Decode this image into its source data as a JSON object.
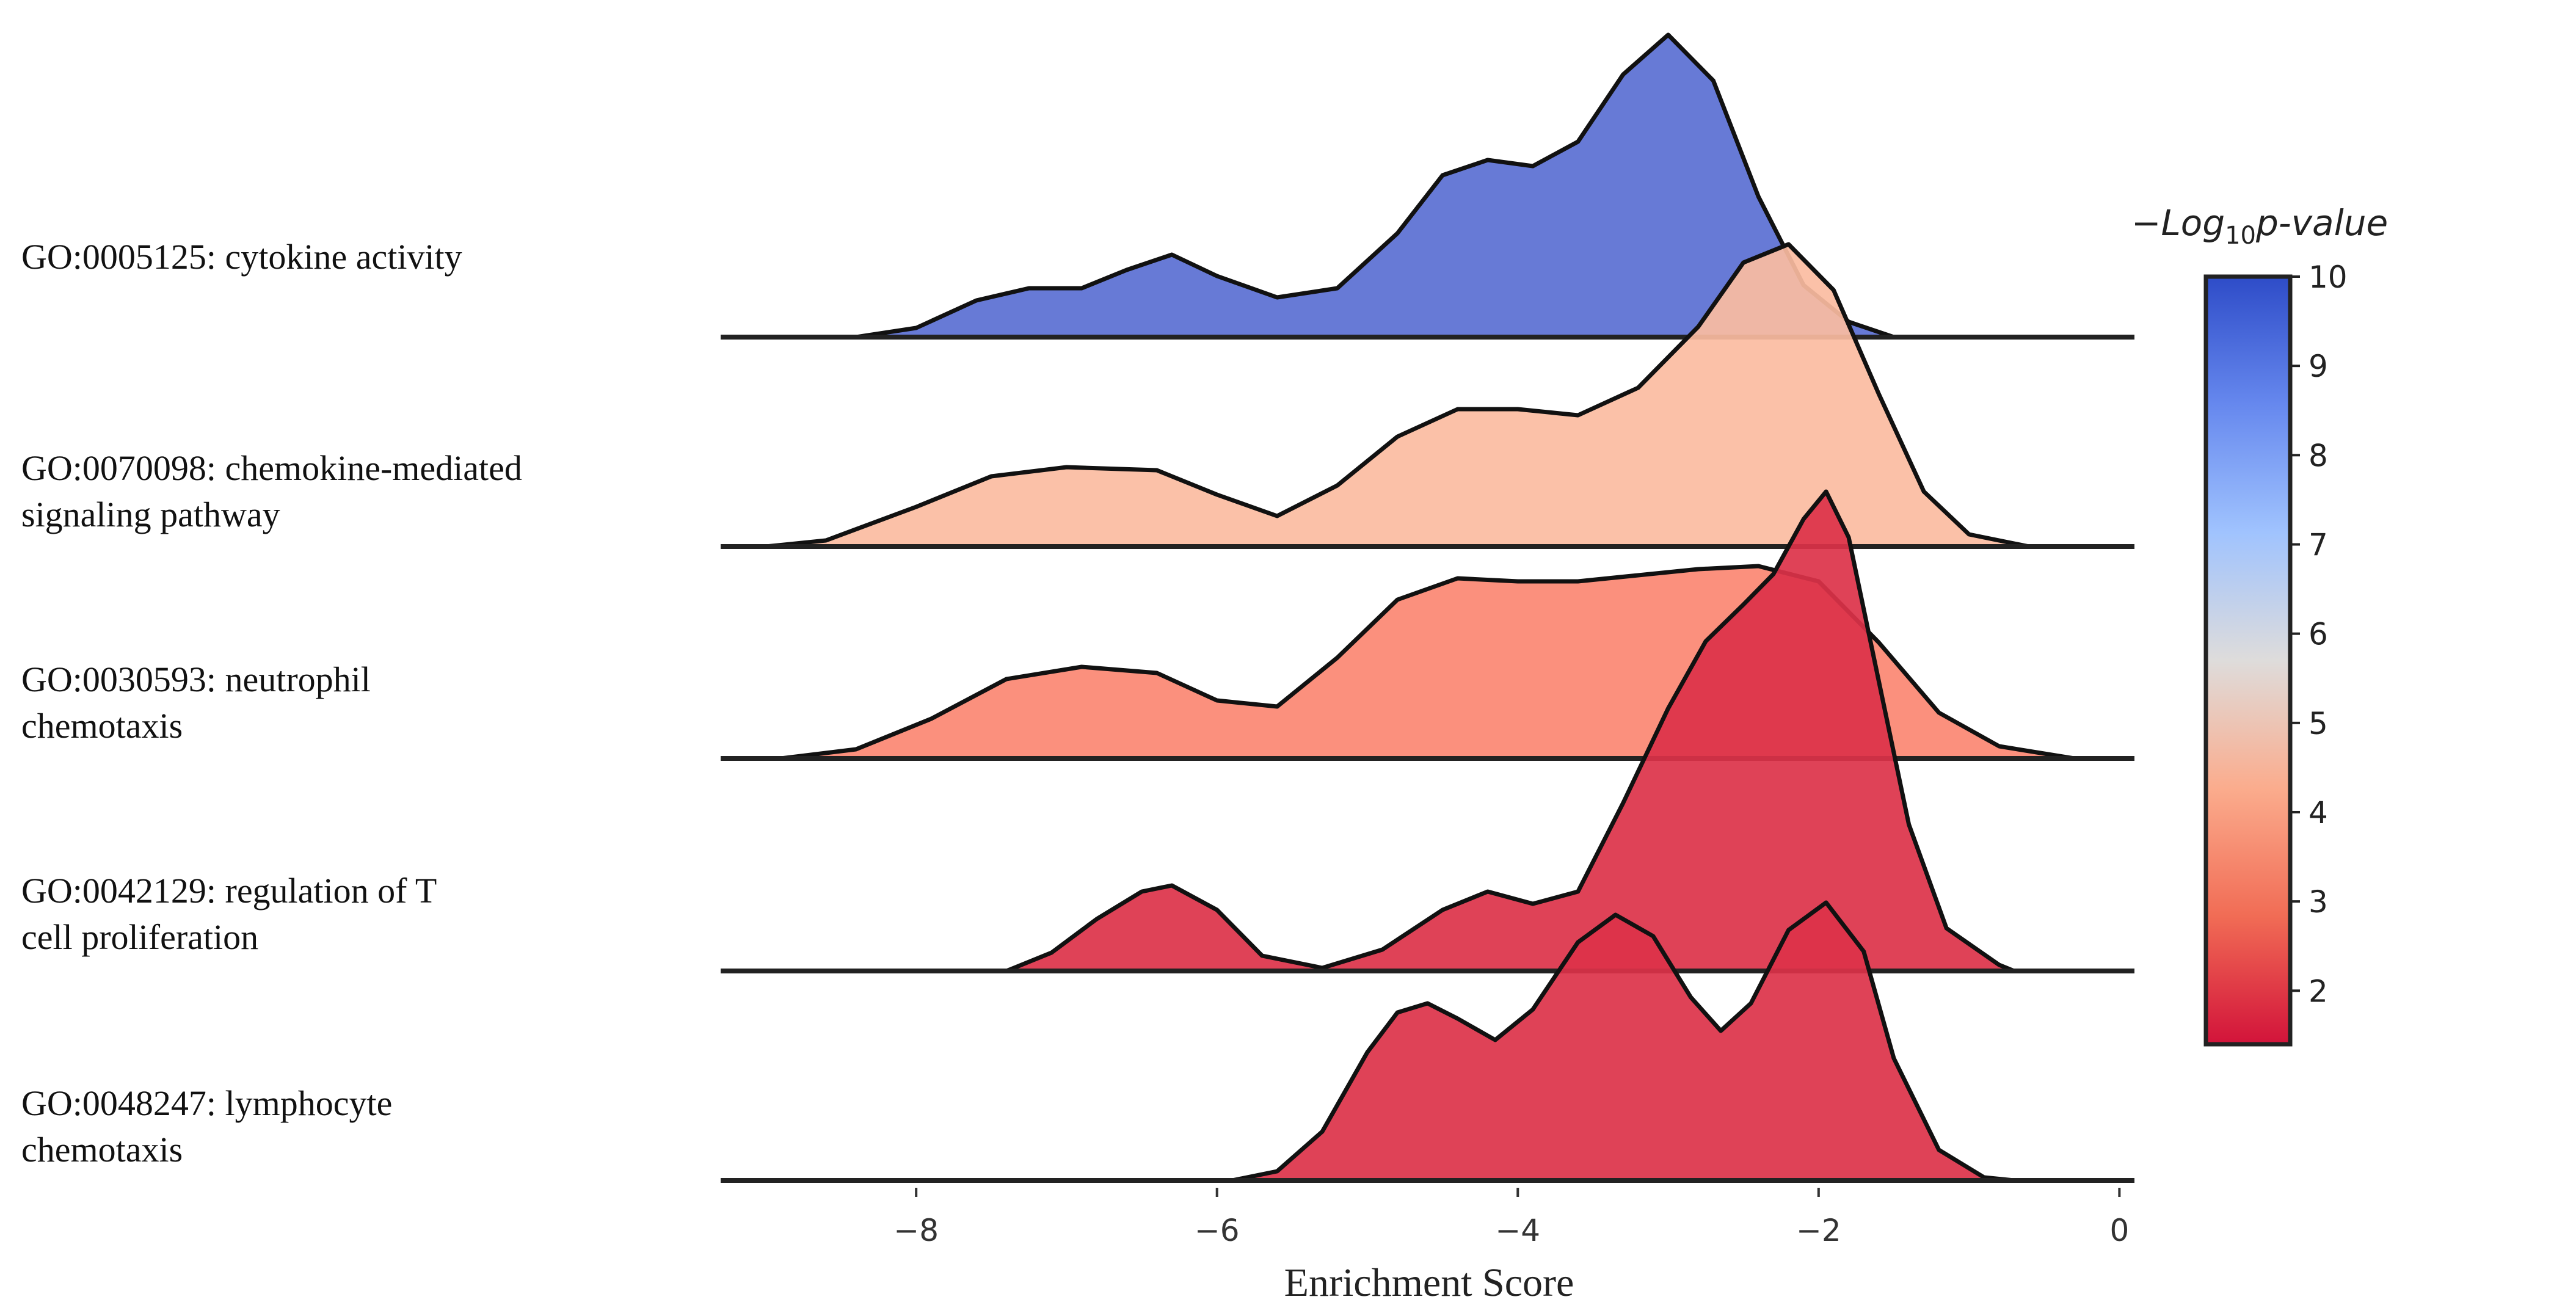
{
  "chart_data": {
    "type": "ridgeline",
    "xlabel": "Enrichment Score",
    "xlim": [
      -9.3,
      0.1
    ],
    "xticks": [
      -8,
      -6,
      -4,
      -2,
      0
    ],
    "xtick_labels": [
      "−8",
      "−6",
      "−4",
      "−2",
      "0"
    ],
    "colorbar": {
      "title_prefix": "−Log",
      "title_subscript": "10",
      "title_suffix": "p-value",
      "range": [
        1.4,
        10
      ],
      "ticks": [
        2,
        3,
        4,
        5,
        6,
        7,
        8,
        9,
        10
      ],
      "tick_labels": [
        "2",
        "3",
        "4",
        "5",
        "6",
        "7",
        "8",
        "9",
        "10"
      ],
      "colormap": "coolwarm_reversed",
      "colors": [
        "#d2133a",
        "#f16c55",
        "#fbac8d",
        "#dedcdb",
        "#a0c3fe",
        "#6688ee",
        "#2e4cc8"
      ]
    },
    "series": [
      {
        "name": "GO:0005125: cytokine activity",
        "label_lines": [
          "GO:0005125: cytokine activity"
        ],
        "neg_log10_p": 10,
        "color": "#5a6fd3",
        "density": [
          [
            -8.4,
            0.0
          ],
          [
            -8.0,
            0.03
          ],
          [
            -7.6,
            0.12
          ],
          [
            -7.25,
            0.16
          ],
          [
            -6.9,
            0.16
          ],
          [
            -6.6,
            0.22
          ],
          [
            -6.3,
            0.27
          ],
          [
            -6.0,
            0.2
          ],
          [
            -5.6,
            0.13
          ],
          [
            -5.2,
            0.16
          ],
          [
            -4.8,
            0.34
          ],
          [
            -4.5,
            0.53
          ],
          [
            -4.2,
            0.58
          ],
          [
            -3.9,
            0.56
          ],
          [
            -3.6,
            0.64
          ],
          [
            -3.3,
            0.86
          ],
          [
            -3.0,
            0.99
          ],
          [
            -2.7,
            0.84
          ],
          [
            -2.4,
            0.46
          ],
          [
            -2.1,
            0.17
          ],
          [
            -1.8,
            0.05
          ],
          [
            -1.5,
            0.0
          ]
        ]
      },
      {
        "name": "GO:0070098: chemokine-mediated signaling pathway",
        "label_lines": [
          "GO:0070098: chemokine-mediated",
          "signaling pathway"
        ],
        "neg_log10_p": 4.0,
        "color": "#fbbca1",
        "density": [
          [
            -9.0,
            0.0
          ],
          [
            -8.6,
            0.02
          ],
          [
            -8.0,
            0.13
          ],
          [
            -7.5,
            0.23
          ],
          [
            -7.0,
            0.26
          ],
          [
            -6.4,
            0.25
          ],
          [
            -6.0,
            0.17
          ],
          [
            -5.6,
            0.1
          ],
          [
            -5.2,
            0.2
          ],
          [
            -4.8,
            0.36
          ],
          [
            -4.4,
            0.45
          ],
          [
            -4.0,
            0.45
          ],
          [
            -3.6,
            0.43
          ],
          [
            -3.2,
            0.52
          ],
          [
            -2.8,
            0.72
          ],
          [
            -2.5,
            0.93
          ],
          [
            -2.2,
            0.99
          ],
          [
            -1.9,
            0.84
          ],
          [
            -1.6,
            0.5
          ],
          [
            -1.3,
            0.18
          ],
          [
            -1.0,
            0.04
          ],
          [
            -0.6,
            0.0
          ]
        ]
      },
      {
        "name": "GO:0030593: neutrophil chemotaxis",
        "label_lines": [
          "GO:0030593: neutrophil",
          "chemotaxis"
        ],
        "neg_log10_p": 3.3,
        "color": "#fb8772",
        "density": [
          [
            -8.9,
            0.0
          ],
          [
            -8.4,
            0.03
          ],
          [
            -7.9,
            0.13
          ],
          [
            -7.4,
            0.26
          ],
          [
            -6.9,
            0.3
          ],
          [
            -6.4,
            0.28
          ],
          [
            -6.0,
            0.19
          ],
          [
            -5.6,
            0.17
          ],
          [
            -5.2,
            0.33
          ],
          [
            -4.8,
            0.52
          ],
          [
            -4.4,
            0.59
          ],
          [
            -4.0,
            0.58
          ],
          [
            -3.6,
            0.58
          ],
          [
            -3.2,
            0.6
          ],
          [
            -2.8,
            0.62
          ],
          [
            -2.4,
            0.63
          ],
          [
            -2.0,
            0.58
          ],
          [
            -1.6,
            0.38
          ],
          [
            -1.2,
            0.15
          ],
          [
            -0.8,
            0.04
          ],
          [
            -0.3,
            0.0
          ]
        ]
      },
      {
        "name": "GO:0042129: regulation of T cell proliferation",
        "label_lines": [
          "GO:0042129: regulation of T",
          "cell proliferation"
        ],
        "neg_log10_p": 1.5,
        "color": "#dc3249",
        "density": [
          [
            -7.4,
            0.0
          ],
          [
            -7.1,
            0.06
          ],
          [
            -6.8,
            0.17
          ],
          [
            -6.5,
            0.26
          ],
          [
            -6.3,
            0.28
          ],
          [
            -6.0,
            0.2
          ],
          [
            -5.7,
            0.05
          ],
          [
            -5.3,
            0.01
          ],
          [
            -4.9,
            0.07
          ],
          [
            -4.5,
            0.2
          ],
          [
            -4.2,
            0.26
          ],
          [
            -3.9,
            0.22
          ],
          [
            -3.6,
            0.26
          ],
          [
            -3.3,
            0.55
          ],
          [
            -3.0,
            0.86
          ],
          [
            -2.75,
            1.08
          ],
          [
            -2.5,
            1.2
          ],
          [
            -2.3,
            1.3
          ],
          [
            -2.1,
            1.48
          ],
          [
            -1.95,
            1.57
          ],
          [
            -1.8,
            1.42
          ],
          [
            -1.6,
            0.95
          ],
          [
            -1.4,
            0.48
          ],
          [
            -1.15,
            0.14
          ],
          [
            -0.8,
            0.02
          ],
          [
            -0.7,
            0.0
          ]
        ]
      },
      {
        "name": "GO:0048247: lymphocyte chemotaxis",
        "label_lines": [
          "GO:0048247: lymphocyte",
          "chemotaxis"
        ],
        "neg_log10_p": 1.5,
        "color": "#dc3249",
        "density": [
          [
            -5.9,
            0.0
          ],
          [
            -5.6,
            0.03
          ],
          [
            -5.3,
            0.16
          ],
          [
            -5.0,
            0.42
          ],
          [
            -4.8,
            0.55
          ],
          [
            -4.6,
            0.58
          ],
          [
            -4.4,
            0.53
          ],
          [
            -4.15,
            0.46
          ],
          [
            -3.9,
            0.56
          ],
          [
            -3.6,
            0.78
          ],
          [
            -3.35,
            0.87
          ],
          [
            -3.1,
            0.8
          ],
          [
            -2.85,
            0.6
          ],
          [
            -2.65,
            0.49
          ],
          [
            -2.45,
            0.58
          ],
          [
            -2.2,
            0.82
          ],
          [
            -1.95,
            0.91
          ],
          [
            -1.7,
            0.75
          ],
          [
            -1.5,
            0.4
          ],
          [
            -1.2,
            0.1
          ],
          [
            -0.9,
            0.01
          ],
          [
            -0.7,
            0.0
          ]
        ]
      }
    ]
  }
}
